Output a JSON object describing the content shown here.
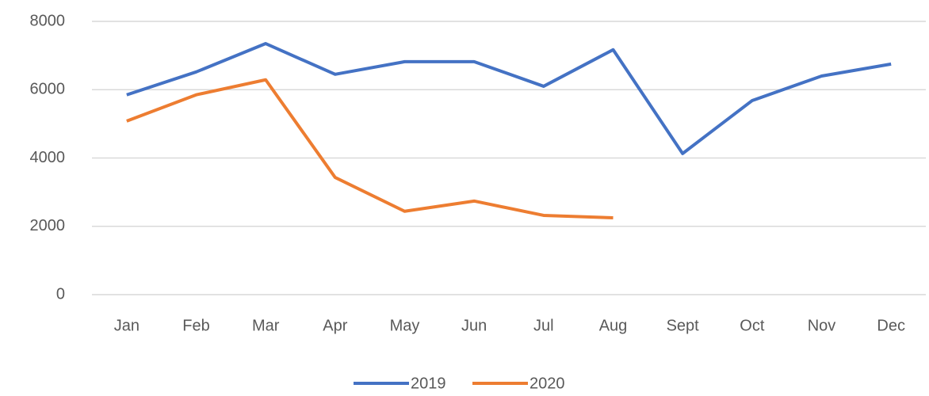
{
  "chart_data": {
    "type": "line",
    "categories": [
      "Jan",
      "Feb",
      "Mar",
      "Apr",
      "May",
      "Jun",
      "Jul",
      "Aug",
      "Sept",
      "Oct",
      "Nov",
      "Dec"
    ],
    "series": [
      {
        "name": "2019",
        "color": "#4472c4",
        "values": [
          5850,
          6520,
          7350,
          6450,
          6820,
          6820,
          6100,
          7170,
          4130,
          5680,
          6400,
          6750
        ]
      },
      {
        "name": "2020",
        "color": "#ed7d31",
        "values": [
          5080,
          5850,
          6290,
          3430,
          2440,
          2740,
          2320,
          2250,
          null,
          null,
          null,
          null
        ]
      }
    ],
    "ylim": [
      0,
      8000
    ],
    "yticks": [
      0,
      2000,
      4000,
      6000,
      8000
    ],
    "grid": true,
    "legend": "bottom"
  }
}
